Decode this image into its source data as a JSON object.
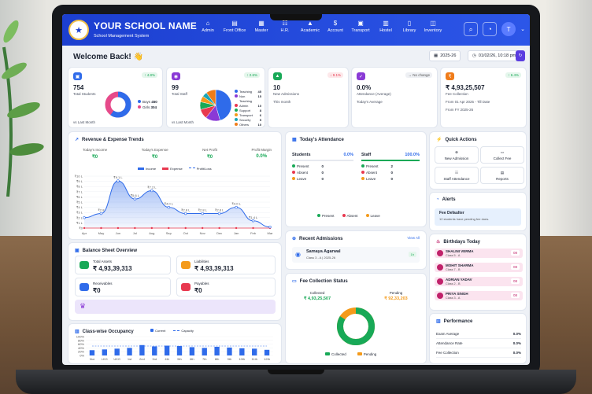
{
  "app": {
    "name": "YOUR SCHOOL NAME",
    "subtitle": "School Management System"
  },
  "nav": [
    {
      "label": "Admin",
      "icon": "home-icon"
    },
    {
      "label": "Front Office",
      "icon": "office-icon"
    },
    {
      "label": "Master",
      "icon": "grid-icon"
    },
    {
      "label": "H.R.",
      "icon": "people-icon"
    },
    {
      "label": "Academic",
      "icon": "cap-icon"
    },
    {
      "label": "Account",
      "icon": "dollar-icon"
    },
    {
      "label": "Transport",
      "icon": "bus-icon"
    },
    {
      "label": "Hostel",
      "icon": "building-icon"
    },
    {
      "label": "Library",
      "icon": "book-icon"
    },
    {
      "label": "Inventory",
      "icon": "box-icon"
    }
  ],
  "header": {
    "avatar": "T"
  },
  "welcome": "Welcome Back! 👋",
  "session": "2025-26",
  "datetime": "01/02/26, 10:18 pm",
  "kpis": {
    "students": {
      "value": "754",
      "label": "Total Students",
      "badge": "↑ 4.8%",
      "footer": "vs Last Month",
      "boys_label": "Boys",
      "boys": "450",
      "girls_label": "Girls",
      "girls": "304"
    },
    "staff": {
      "value": "99",
      "label": "Total Staff",
      "badge": "↑ 2.6%",
      "footer": "vs Last Month",
      "legend": [
        {
          "label": "Teaching",
          "value": "45",
          "color": "#2f6bea"
        },
        {
          "label": "Non Teaching",
          "value": "15",
          "color": "#8a3ad6"
        },
        {
          "label": "Admin",
          "value": "10",
          "color": "#e8384f"
        },
        {
          "label": "Support",
          "value": "8",
          "color": "#18a957"
        },
        {
          "label": "Transport",
          "value": "6",
          "color": "#f49a1a"
        },
        {
          "label": "Security",
          "value": "5",
          "color": "#1aa6b7"
        },
        {
          "label": "Others",
          "value": "10",
          "color": "#f07c1a"
        }
      ]
    },
    "admissions": {
      "value": "10",
      "label": "New Admissions",
      "badge": "↓ 9.1%",
      "footer": "This month"
    },
    "attendance": {
      "value": "0.0%",
      "label": "Attendance (Average)",
      "badge": "→ No change",
      "footer": "Today's Average"
    },
    "fee": {
      "value": "₹ 4,93,25,507",
      "label": "Fee Collection",
      "badge": "↑ 6.4%",
      "line1": "From 01 Apr 2025 - Till Date",
      "line2": "From FY 2025-26"
    }
  },
  "trends": {
    "title": "Revenue & Expense Trends",
    "stats": [
      {
        "label": "Today's Income",
        "value": "₹0"
      },
      {
        "label": "Today's Expense",
        "value": "₹0"
      },
      {
        "label": "Net Profit",
        "value": "₹0"
      },
      {
        "label": "Profit Margin",
        "value": "0.0%"
      }
    ],
    "legend": [
      "Income",
      "Expense",
      "Profit/Loss"
    ]
  },
  "chart_data": [
    {
      "type": "area",
      "categories": [
        "Apr",
        "May",
        "Jun",
        "Jul",
        "Aug",
        "Sep",
        "Oct",
        "Nov",
        "Dec",
        "Jan",
        "Feb",
        "Mar"
      ],
      "series": [
        {
          "name": "Income",
          "values": [
            2.0,
            2.8,
            9.1,
            5.6,
            7.2,
            4.0,
            2.8,
            2.8,
            2.8,
            4.0,
            1.4,
            0.2
          ]
        },
        {
          "name": "Expense",
          "values": [
            0,
            0,
            0,
            0,
            0,
            0,
            0,
            0,
            0,
            0,
            0,
            0
          ]
        },
        {
          "name": "Profit/Loss",
          "values": [
            2.0,
            2.8,
            9.1,
            5.6,
            7.2,
            4.0,
            2.8,
            2.8,
            2.8,
            4.0,
            1.4,
            0.2
          ]
        }
      ],
      "point_labels": [
        "",
        "₹2.8",
        "₹9.1 L",
        "₹5.6 L",
        "₹7.2 L",
        "₹4.0 L",
        "₹2.8 L",
        "₹2.8 L",
        "₹2.8 L",
        "₹4.0 L",
        "₹1.4 L",
        ""
      ],
      "yticks": [
        "₹0",
        "₹1 L",
        "₹2 L",
        "₹3 L",
        "₹4 L",
        "₹5 L",
        "₹6 L",
        "₹7 L",
        "₹8 L",
        "₹9 L",
        "₹10 L"
      ],
      "ylim": [
        0,
        10
      ]
    },
    {
      "type": "bar",
      "categories": [
        "Nur",
        "LKG",
        "UKG",
        "1st",
        "2nd",
        "3rd",
        "4th",
        "5th",
        "6th",
        "7th",
        "8th",
        "9th",
        "10th",
        "11th",
        "12th"
      ],
      "series": [
        {
          "name": "Current",
          "values": [
            28,
            32,
            36,
            40,
            55,
            48,
            52,
            50,
            44,
            40,
            46,
            42,
            38,
            36,
            30
          ]
        },
        {
          "name": "Capacity",
          "values": [
            50,
            50,
            50,
            50,
            50,
            50,
            50,
            50,
            50,
            50,
            50,
            50,
            50,
            50,
            50
          ]
        }
      ],
      "yticks": [
        "0%",
        "20%",
        "40%",
        "60%",
        "80%",
        "100%"
      ],
      "ylim": [
        0,
        100
      ]
    }
  ],
  "attendance_today": {
    "title": "Today's Attendance",
    "students": {
      "label": "Students",
      "pct": "0.0%",
      "rows": [
        {
          "label": "Present",
          "value": "0"
        },
        {
          "label": "Absent",
          "value": "0"
        },
        {
          "label": "Leave",
          "value": "0"
        }
      ]
    },
    "staff": {
      "label": "Staff",
      "pct": "100.0%",
      "rows": [
        {
          "label": "Present",
          "value": "2"
        },
        {
          "label": "Absent",
          "value": "0"
        },
        {
          "label": "Leave",
          "value": "0"
        }
      ]
    },
    "legend": [
      "Present",
      "Absent",
      "Leave"
    ]
  },
  "quick_actions": {
    "title": "Quick Actions",
    "items": [
      "New Admission",
      "Collect Fee",
      "Staff Attendance",
      "Reports"
    ]
  },
  "alerts": {
    "title": "Alerts",
    "head": "Fee Defaulter",
    "text": "12 students have pending fee dues."
  },
  "balance": {
    "title": "Balance Sheet Overview",
    "items": [
      {
        "label": "Total Assets",
        "value": "₹ 4,93,39,313",
        "color": "#18a957"
      },
      {
        "label": "Liabilities",
        "value": "₹ 4,93,39,313",
        "color": "#f49a1a"
      },
      {
        "label": "Receivables",
        "value": "₹0",
        "color": "#2f6bea"
      },
      {
        "label": "Payables",
        "value": "₹0",
        "color": "#e8384f"
      }
    ]
  },
  "recent": {
    "title": "Recent Admissions",
    "view_all": "View All",
    "name": "Samaya Agarwal",
    "class": "Class 3 - A | 2025-26",
    "badge": "1h"
  },
  "fee_status": {
    "title": "Fee Collection Status",
    "collected_label": "Collected",
    "collected": "₹ 4,93,25,507",
    "pending_label": "Pending",
    "pending": "₹ 92,33,203",
    "legend": [
      "Collected",
      "Pending"
    ],
    "collected_share": 0.84
  },
  "birthdays": {
    "title": "Birthdays Today",
    "items": [
      {
        "name": "SHALINI VERMA",
        "class": "Class 5 - A",
        "date": "08"
      },
      {
        "name": "MOHIT SHARMA",
        "class": "Class 7 - B",
        "date": "08"
      },
      {
        "name": "ADRIAN YADAV",
        "class": "Class 2 - B",
        "date": "08"
      },
      {
        "name": "PRIYA SINGH",
        "class": "Class 3 - A",
        "date": "08"
      }
    ]
  },
  "performance": {
    "title": "Performance",
    "rows": [
      {
        "label": "Exam Average",
        "value": "0.0%"
      },
      {
        "label": "Attendance Rate",
        "value": "0.0%"
      },
      {
        "label": "Fee Collection",
        "value": "0.0%"
      }
    ]
  },
  "occupancy": {
    "title": "Class-wise Occupancy",
    "legend": [
      "Current",
      "Capacity"
    ]
  }
}
